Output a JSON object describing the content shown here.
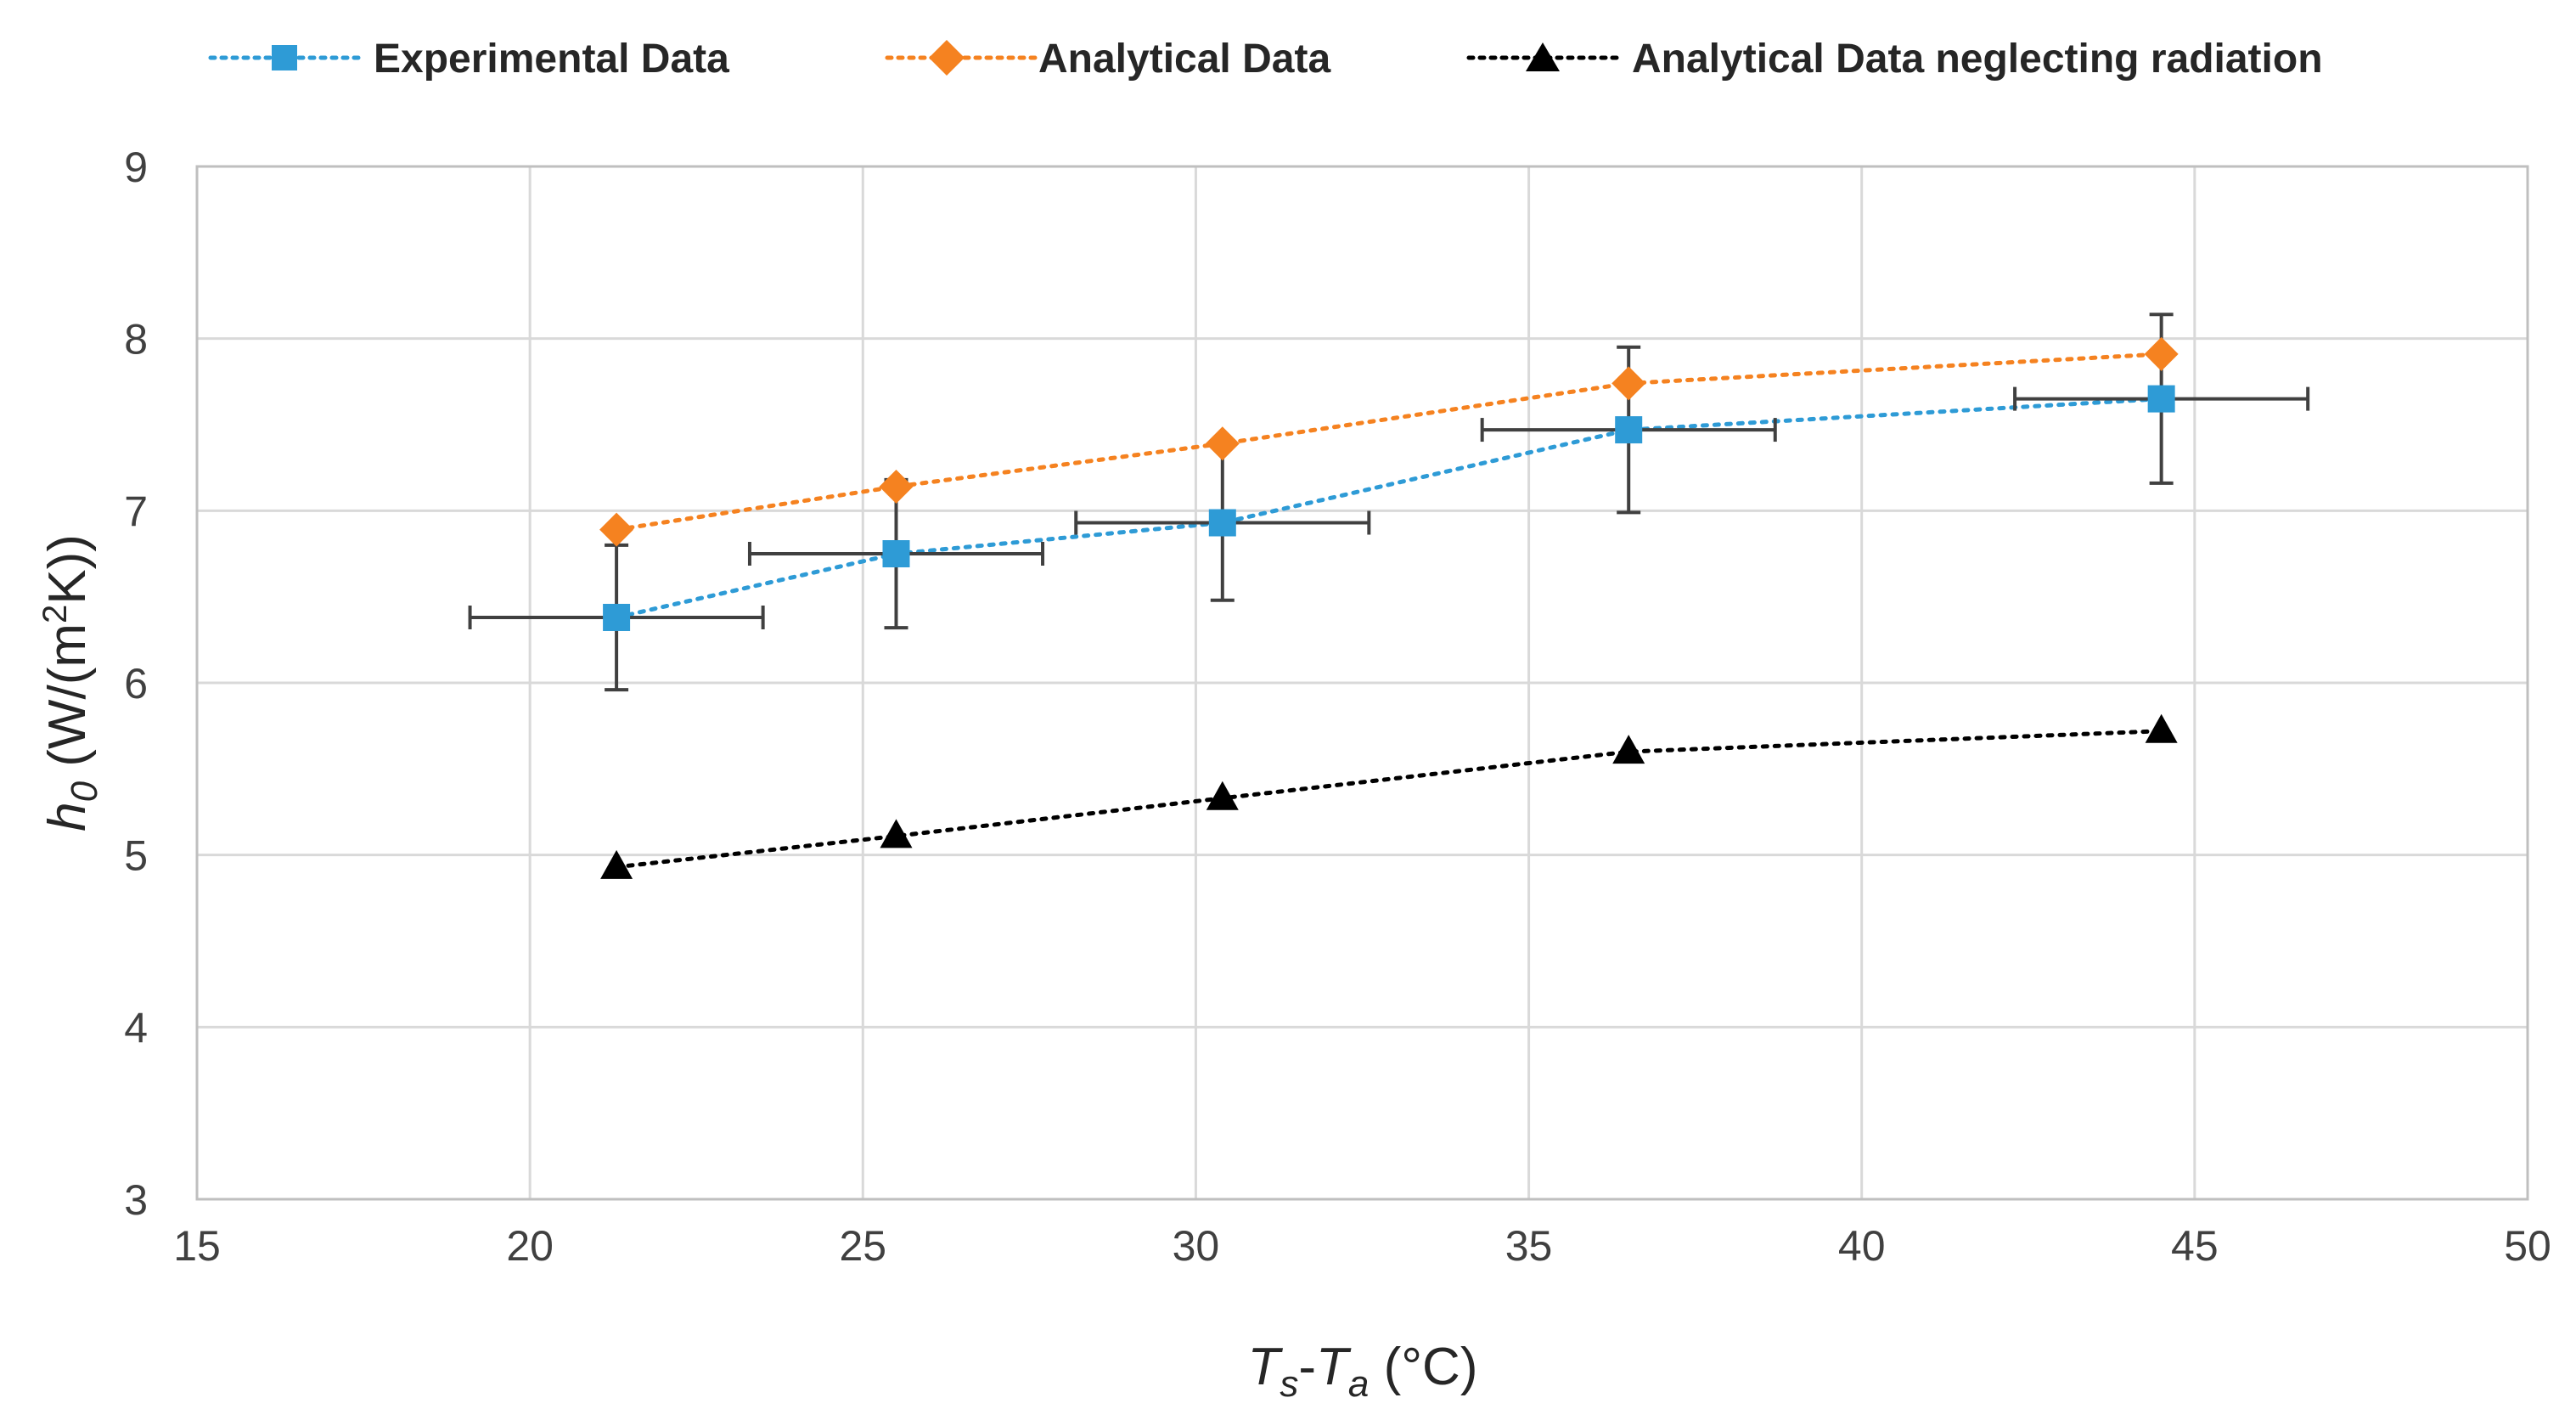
{
  "chart_data": {
    "type": "scatter",
    "xlim": [
      15,
      50
    ],
    "ylim": [
      3,
      9
    ],
    "x_ticks": [
      15,
      20,
      25,
      30,
      35,
      40,
      45,
      50
    ],
    "y_ticks": [
      3,
      4,
      5,
      6,
      7,
      8,
      9
    ],
    "grid": true,
    "legend_position": "top",
    "xlabel": {
      "t": "T",
      "s": "s",
      "dash": "-",
      "ta": "T",
      "a": "a",
      "unit": " (°C)"
    },
    "ylabel": {
      "h": "h",
      "sub": "0",
      "unit1": " (W/(m",
      "sup": "2",
      "unit2": "K))"
    },
    "series": [
      {
        "name": "Experimental Data",
        "color": "#2E9BD6",
        "marker": "square",
        "line": "dotted",
        "x": [
          21.3,
          25.5,
          30.4,
          36.5,
          44.5
        ],
        "y": [
          6.38,
          6.75,
          6.93,
          7.47,
          7.65
        ],
        "x_err": [
          2.2,
          2.2,
          2.2,
          2.2,
          2.2
        ],
        "y_err": [
          0.42,
          0.43,
          0.45,
          0.48,
          0.49
        ]
      },
      {
        "name": "Analytical Data",
        "color": "#F58220",
        "marker": "diamond",
        "line": "dotted",
        "x": [
          21.3,
          25.5,
          30.4,
          36.5,
          44.5
        ],
        "y": [
          6.89,
          7.14,
          7.39,
          7.74,
          7.91
        ]
      },
      {
        "name": "Analytical Data neglecting radiation",
        "color": "#000000",
        "marker": "triangle",
        "line": "dotted",
        "x": [
          21.3,
          25.5,
          30.4,
          36.5,
          44.5
        ],
        "y": [
          4.93,
          5.11,
          5.33,
          5.6,
          5.72
        ]
      }
    ]
  }
}
